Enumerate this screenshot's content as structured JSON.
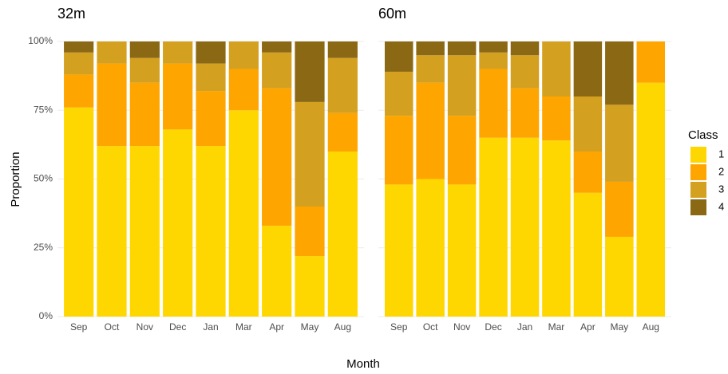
{
  "chart_data": [
    {
      "type": "bar",
      "stacked": true,
      "title": "32m",
      "y_label": "Proportion",
      "x_label": "Month",
      "legend_title": "Class",
      "categories": [
        "Sep",
        "Oct",
        "Nov",
        "Dec",
        "Jan",
        "Mar",
        "Apr",
        "May",
        "Aug"
      ],
      "ylim": [
        0,
        100
      ],
      "yticks": [
        {
          "value": 0,
          "label": "0%"
        },
        {
          "value": 25,
          "label": "25%"
        },
        {
          "value": 50,
          "label": "50%"
        },
        {
          "value": 75,
          "label": "75%"
        },
        {
          "value": 100,
          "label": "100%"
        }
      ],
      "grid": true,
      "series": [
        {
          "name": "1",
          "color": "#ffd700",
          "values": [
            76,
            62,
            62,
            68,
            62,
            75,
            33,
            22,
            60
          ]
        },
        {
          "name": "2",
          "color": "#ffa500",
          "values": [
            12,
            30,
            23,
            24,
            20,
            15,
            50,
            18,
            14
          ]
        },
        {
          "name": "3",
          "color": "#d4a020",
          "values": [
            8,
            8,
            9,
            8,
            10,
            10,
            13,
            38,
            20
          ]
        },
        {
          "name": "4",
          "color": "#8b6914",
          "values": [
            4,
            0,
            6,
            0,
            8,
            0,
            4,
            22,
            6
          ]
        }
      ]
    },
    {
      "type": "bar",
      "stacked": true,
      "title": "60m",
      "categories": [
        "Sep",
        "Oct",
        "Nov",
        "Dec",
        "Jan",
        "Mar",
        "Apr",
        "May",
        "Aug"
      ],
      "ylim": [
        0,
        100
      ],
      "grid": true,
      "series": [
        {
          "color": "#ffd700",
          "values": [
            48,
            50,
            48,
            65,
            65,
            64,
            45,
            29,
            85
          ]
        },
        {
          "color": "#ffa500",
          "values": [
            25,
            35,
            25,
            25,
            18,
            16,
            15,
            20,
            15
          ]
        },
        {
          "color": "#d4a020",
          "values": [
            16,
            10,
            22,
            6,
            12,
            20,
            20,
            28,
            0
          ]
        },
        {
          "color": "#8b6914",
          "values": [
            11,
            5,
            5,
            4,
            5,
            0,
            20,
            23,
            0
          ]
        }
      ]
    }
  ]
}
